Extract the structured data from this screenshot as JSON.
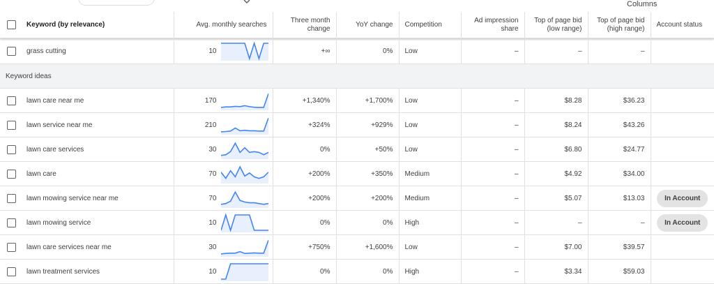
{
  "toolbar": {
    "columns_label": "Columns"
  },
  "headers": {
    "keyword": "Keyword (by relevance)",
    "avg_monthly": "Avg. monthly searches",
    "three_month": [
      "Three month",
      "change"
    ],
    "yoy": "YoY change",
    "competition": "Competition",
    "ad_impression": [
      "Ad impression",
      "share"
    ],
    "bid_low": [
      "Top of page bid",
      "(low range)"
    ],
    "bid_high": [
      "Top of page bid",
      "(high range)"
    ],
    "account_status": "Account status"
  },
  "section_label": "Keyword ideas",
  "colors": {
    "spark_line": "#4285f4",
    "spark_fill": "#e8f0fe",
    "pill_bg": "#e3e3e3"
  },
  "rows": [
    {
      "keyword": "grass cutting",
      "avg": "10",
      "spark": [
        1,
        1,
        1,
        1,
        1,
        1,
        0,
        1,
        0,
        1,
        1
      ],
      "three_month": "+∞",
      "yoy": "0%",
      "competition": "Low",
      "ad_share": "–",
      "bid_low": "–",
      "bid_high": "–",
      "account_status": ""
    },
    {
      "keyword": "lawn care near me",
      "avg": "170",
      "spark": [
        0.05,
        0.08,
        0.08,
        0.12,
        0.1,
        0.16,
        0.1,
        0.06,
        0.05,
        0.05,
        0.95
      ],
      "three_month": "+1,340%",
      "yoy": "+1,700%",
      "competition": "Low",
      "ad_share": "–",
      "bid_low": "$8.28",
      "bid_high": "$36.23",
      "account_status": ""
    },
    {
      "keyword": "lawn service near me",
      "avg": "210",
      "spark": [
        0.05,
        0.07,
        0.1,
        0.3,
        0.12,
        0.15,
        0.12,
        0.12,
        0.1,
        0.1,
        0.95
      ],
      "three_month": "+324%",
      "yoy": "+929%",
      "competition": "Low",
      "ad_share": "–",
      "bid_low": "$8.24",
      "bid_high": "$43.26",
      "account_status": ""
    },
    {
      "keyword": "lawn care services",
      "avg": "30",
      "spark": [
        0.1,
        0.15,
        0.35,
        0.9,
        0.3,
        0.6,
        0.3,
        0.35,
        0.3,
        0.15,
        0.3
      ],
      "three_month": "0%",
      "yoy": "+50%",
      "competition": "Low",
      "ad_share": "–",
      "bid_low": "$6.80",
      "bid_high": "$24.77",
      "account_status": ""
    },
    {
      "keyword": "lawn care",
      "avg": "70",
      "spark": [
        0.6,
        0.2,
        0.7,
        0.3,
        0.95,
        0.35,
        0.55,
        0.3,
        0.2,
        0.3,
        0.6
      ],
      "three_month": "+200%",
      "yoy": "+350%",
      "competition": "Medium",
      "ad_share": "–",
      "bid_low": "$4.92",
      "bid_high": "$34.00",
      "account_status": ""
    },
    {
      "keyword": "lawn mowing service near me",
      "avg": "70",
      "spark": [
        0.1,
        0.15,
        0.3,
        0.9,
        0.35,
        0.25,
        0.2,
        0.2,
        0.15,
        0.1,
        0.15
      ],
      "three_month": "+200%",
      "yoy": "+200%",
      "competition": "Medium",
      "ad_share": "–",
      "bid_low": "$5.07",
      "bid_high": "$13.03",
      "account_status": "In Account"
    },
    {
      "keyword": "lawn mowing service",
      "avg": "10",
      "spark": [
        0,
        1,
        0,
        1,
        1,
        1,
        1,
        0,
        0,
        0,
        0
      ],
      "three_month": "0%",
      "yoy": "0%",
      "competition": "High",
      "ad_share": "–",
      "bid_low": "–",
      "bid_high": "–",
      "account_status": "In Account"
    },
    {
      "keyword": "lawn care services near me",
      "avg": "30",
      "spark": [
        0.05,
        0.08,
        0.1,
        0.1,
        0.2,
        0.08,
        0.1,
        0.12,
        0.1,
        0.1,
        0.95
      ],
      "three_month": "+750%",
      "yoy": "+1,600%",
      "competition": "Low",
      "ad_share": "–",
      "bid_low": "$7.00",
      "bid_high": "$39.57",
      "account_status": ""
    },
    {
      "keyword": "lawn treatment services",
      "avg": "10",
      "spark": [
        0,
        0,
        1,
        1,
        1,
        1,
        1,
        1,
        1,
        1,
        1
      ],
      "three_month": "0%",
      "yoy": "0%",
      "competition": "High",
      "ad_share": "–",
      "bid_low": "$3.34",
      "bid_high": "$59.03",
      "account_status": ""
    }
  ]
}
